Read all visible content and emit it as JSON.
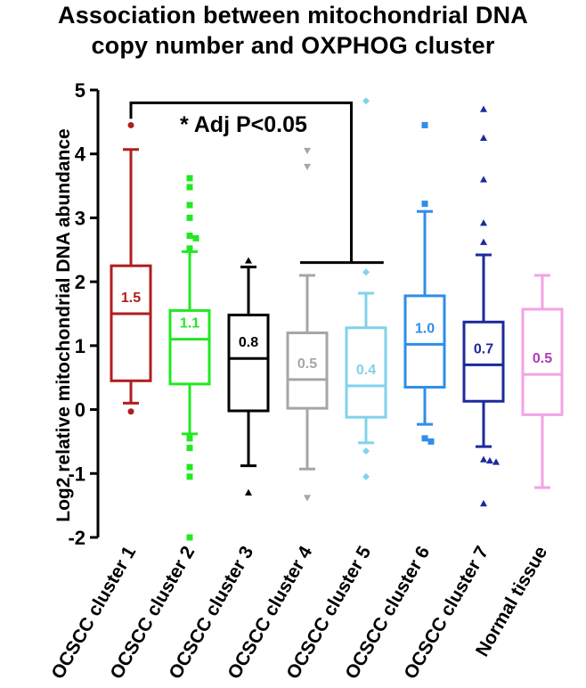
{
  "chart_data": {
    "type": "box",
    "title_lines": [
      "Association between mitochondrial DNA",
      "copy number and OXPHOG cluster"
    ],
    "ylabel": "Log2 relative mitochondrial DNA abundance",
    "xlabel": "",
    "ylim": [
      -2,
      5
    ],
    "yticks": [
      "-2",
      "-1",
      "0",
      "1",
      "2",
      "3",
      "4",
      "5"
    ],
    "annotation": "* Adj P<0.05",
    "comparison": {
      "from": "OCSCC cluster 1",
      "to": [
        "OCSCC cluster 4",
        "OCSCC cluster 5"
      ]
    },
    "series": [
      {
        "name": "OCSCC cluster 1",
        "color": "#b01e1e",
        "marker": "circle",
        "whisker_low": 0.1,
        "q1": 0.45,
        "median": 1.5,
        "q3": 2.25,
        "whisker_high": 4.07,
        "label": "1.5",
        "outliers": [
          4.45,
          -0.03
        ]
      },
      {
        "name": "OCSCC cluster 2",
        "color": "#22e822",
        "marker": "square",
        "whisker_low": -0.38,
        "q1": 0.4,
        "median": 1.1,
        "q3": 1.55,
        "whisker_high": 2.47,
        "label": "1.1",
        "outliers": [
          3.62,
          3.48,
          3.2,
          3.0,
          2.72,
          2.68,
          2.52,
          -0.45,
          -0.6,
          -0.9,
          -1.05,
          -2.0
        ]
      },
      {
        "name": "OCSCC cluster 3",
        "color": "#000000",
        "marker": "triangle",
        "whisker_low": -0.88,
        "q1": -0.02,
        "median": 0.8,
        "q3": 1.48,
        "whisker_high": 2.23,
        "label": "0.8",
        "outliers": [
          2.33,
          -1.3
        ]
      },
      {
        "name": "OCSCC cluster 4",
        "color": "#a6a6a6",
        "marker": "triangle-down",
        "whisker_low": -0.93,
        "q1": 0.02,
        "median": 0.47,
        "q3": 1.2,
        "whisker_high": 2.1,
        "label": "0.5",
        "outliers": [
          4.05,
          3.8,
          -1.38
        ]
      },
      {
        "name": "OCSCC cluster 5",
        "color": "#7fd3ea",
        "marker": "diamond",
        "whisker_low": -0.52,
        "q1": -0.12,
        "median": 0.37,
        "q3": 1.28,
        "whisker_high": 1.82,
        "label": "0.4",
        "outliers": [
          4.83,
          2.15,
          -0.65,
          -1.05
        ]
      },
      {
        "name": "OCSCC cluster 6",
        "color": "#2e8ee8",
        "marker": "square",
        "whisker_low": -0.23,
        "q1": 0.35,
        "median": 1.02,
        "q3": 1.78,
        "whisker_high": 3.1,
        "label": "1.0",
        "outliers": [
          4.45,
          3.22,
          -0.45,
          -0.5
        ]
      },
      {
        "name": "OCSCC cluster 7",
        "color": "#1c2a9c",
        "marker": "triangle",
        "whisker_low": -0.58,
        "q1": 0.13,
        "median": 0.7,
        "q3": 1.37,
        "whisker_high": 2.42,
        "label": "0.7",
        "outliers": [
          4.7,
          4.25,
          3.6,
          2.92,
          2.62,
          -0.78,
          -0.8,
          -0.82,
          -1.47
        ]
      },
      {
        "name": "Normal tissue",
        "color": "#f4a3e3",
        "marker": "circle",
        "whisker_low": -1.22,
        "q1": -0.08,
        "median": 0.55,
        "q3": 1.57,
        "whisker_high": 2.1,
        "label": "0.5",
        "label_color": "#b03ab8",
        "outliers": []
      }
    ]
  }
}
